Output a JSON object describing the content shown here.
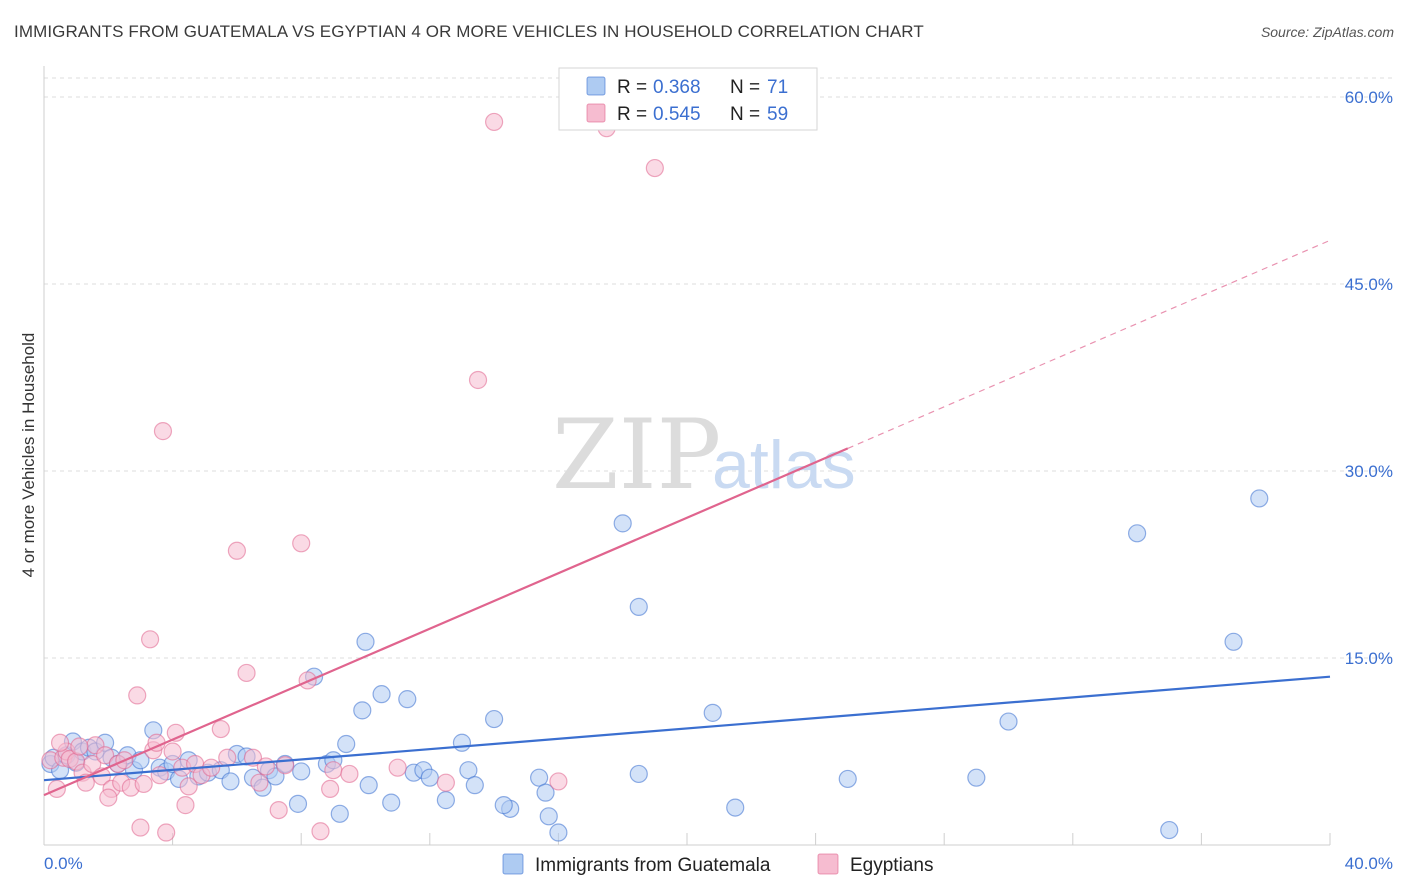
{
  "title": "IMMIGRANTS FROM GUATEMALA VS EGYPTIAN 4 OR MORE VEHICLES IN HOUSEHOLD CORRELATION CHART",
  "source": "Source: ZipAtlas.com",
  "watermark": {
    "zip": "ZIP",
    "atlas": "atlas"
  },
  "colors": {
    "blue": "#3b6fd0",
    "blue_fill": "#aecbf2",
    "pink": "#e0648e",
    "pink_fill": "#f6bcd0",
    "grid": "#dddddd"
  },
  "chart_data": {
    "type": "scatter",
    "ylabel": "4 or more Vehicles in Household",
    "xlim": [
      0,
      40
    ],
    "ylim": [
      0,
      60
    ],
    "x_tick_labels": [
      "0.0%",
      "40.0%"
    ],
    "y_ticks": [
      15,
      30,
      45,
      60
    ],
    "y_tick_labels": [
      "15.0%",
      "30.0%",
      "45.0%",
      "60.0%"
    ],
    "legend": [
      {
        "r_label": "R =",
        "r_value": "0.368",
        "n_label": "N =",
        "n_value": "71"
      },
      {
        "r_label": "R =",
        "r_value": "0.545",
        "n_label": "N =",
        "n_value": "59"
      }
    ],
    "series": [
      {
        "name": "Immigrants from Guatemala",
        "color": "#3b6fd0",
        "trend": {
          "x0": 0,
          "y0": 5.2,
          "x1": 40,
          "y1": 13.5,
          "solid_to": 40
        },
        "points": [
          [
            0.2,
            6.5
          ],
          [
            0.3,
            7.0
          ],
          [
            0.5,
            6.0
          ],
          [
            0.7,
            7.2
          ],
          [
            0.9,
            8.3
          ],
          [
            1.0,
            6.6
          ],
          [
            1.2,
            7.5
          ],
          [
            1.4,
            7.8
          ],
          [
            1.6,
            7.5
          ],
          [
            1.9,
            8.2
          ],
          [
            2.1,
            7.0
          ],
          [
            2.3,
            6.5
          ],
          [
            2.6,
            7.2
          ],
          [
            2.8,
            6.0
          ],
          [
            3.0,
            6.8
          ],
          [
            3.4,
            9.2
          ],
          [
            3.6,
            6.2
          ],
          [
            3.8,
            5.9
          ],
          [
            4.0,
            6.5
          ],
          [
            4.2,
            5.3
          ],
          [
            4.5,
            6.8
          ],
          [
            4.8,
            5.5
          ],
          [
            5.1,
            5.8
          ],
          [
            5.5,
            6.0
          ],
          [
            5.8,
            5.1
          ],
          [
            6.0,
            7.3
          ],
          [
            6.3,
            7.1
          ],
          [
            6.5,
            5.4
          ],
          [
            6.8,
            4.6
          ],
          [
            7.0,
            6.0
          ],
          [
            7.2,
            5.5
          ],
          [
            7.5,
            6.5
          ],
          [
            8.0,
            5.9
          ],
          [
            8.4,
            13.5
          ],
          [
            8.8,
            6.5
          ],
          [
            9.0,
            6.8
          ],
          [
            9.4,
            8.1
          ],
          [
            9.9,
            10.8
          ],
          [
            10.1,
            4.8
          ],
          [
            10.5,
            12.1
          ],
          [
            10.8,
            3.4
          ],
          [
            11.3,
            11.7
          ],
          [
            11.5,
            5.8
          ],
          [
            11.8,
            6.0
          ],
          [
            12.0,
            5.4
          ],
          [
            12.5,
            3.6
          ],
          [
            13.0,
            8.2
          ],
          [
            13.2,
            6.0
          ],
          [
            13.4,
            4.8
          ],
          [
            14.0,
            10.1
          ],
          [
            14.5,
            2.9
          ],
          [
            15.4,
            5.4
          ],
          [
            15.6,
            4.2
          ],
          [
            15.7,
            2.3
          ],
          [
            16.0,
            1.0
          ],
          [
            18.0,
            25.8
          ],
          [
            18.5,
            5.7
          ],
          [
            18.5,
            19.1
          ],
          [
            20.8,
            10.6
          ],
          [
            21.5,
            3.0
          ],
          [
            25.0,
            5.3
          ],
          [
            29.0,
            5.4
          ],
          [
            30.0,
            9.9
          ],
          [
            34.0,
            25.0
          ],
          [
            35.0,
            1.2
          ],
          [
            37.0,
            16.3
          ],
          [
            37.8,
            27.8
          ],
          [
            14.3,
            3.2
          ],
          [
            9.2,
            2.5
          ],
          [
            7.9,
            3.3
          ],
          [
            10.0,
            16.3
          ]
        ]
      },
      {
        "name": "Egyptians",
        "color": "#e0648e",
        "trend": {
          "x0": 0,
          "y0": 4.0,
          "x1": 40,
          "y1": 48.5,
          "solid_to": 25
        },
        "points": [
          [
            0.2,
            6.8
          ],
          [
            0.4,
            4.5
          ],
          [
            0.6,
            7.0
          ],
          [
            0.7,
            7.5
          ],
          [
            0.8,
            6.9
          ],
          [
            1.0,
            6.7
          ],
          [
            1.2,
            5.8
          ],
          [
            1.3,
            5.0
          ],
          [
            1.5,
            6.5
          ],
          [
            1.6,
            8.0
          ],
          [
            1.8,
            5.5
          ],
          [
            1.9,
            7.2
          ],
          [
            2.1,
            4.5
          ],
          [
            2.3,
            6.5
          ],
          [
            2.4,
            5.0
          ],
          [
            2.5,
            6.8
          ],
          [
            2.7,
            4.6
          ],
          [
            2.9,
            12.0
          ],
          [
            3.0,
            1.4
          ],
          [
            3.1,
            4.9
          ],
          [
            3.3,
            16.5
          ],
          [
            3.4,
            7.6
          ],
          [
            3.5,
            8.2
          ],
          [
            3.7,
            33.2
          ],
          [
            3.8,
            1.0
          ],
          [
            4.0,
            7.5
          ],
          [
            4.1,
            9.0
          ],
          [
            4.3,
            6.2
          ],
          [
            4.5,
            4.7
          ],
          [
            4.7,
            6.5
          ],
          [
            4.9,
            5.6
          ],
          [
            5.2,
            6.2
          ],
          [
            5.5,
            9.3
          ],
          [
            5.7,
            7.0
          ],
          [
            6.0,
            23.6
          ],
          [
            6.3,
            13.8
          ],
          [
            6.5,
            7.0
          ],
          [
            6.9,
            6.3
          ],
          [
            7.3,
            2.8
          ],
          [
            7.5,
            6.4
          ],
          [
            8.0,
            24.2
          ],
          [
            8.2,
            13.2
          ],
          [
            8.6,
            1.1
          ],
          [
            9.0,
            6.0
          ],
          [
            13.5,
            37.3
          ],
          [
            17.5,
            57.5
          ],
          [
            19.0,
            54.3
          ],
          [
            14.0,
            58.0
          ],
          [
            11.0,
            6.2
          ],
          [
            16.0,
            5.1
          ],
          [
            2.0,
            3.8
          ],
          [
            4.4,
            3.2
          ],
          [
            8.9,
            4.5
          ],
          [
            6.7,
            5.0
          ],
          [
            12.5,
            5.0
          ],
          [
            3.6,
            5.6
          ],
          [
            1.1,
            7.9
          ],
          [
            0.5,
            8.2
          ],
          [
            9.5,
            5.7
          ]
        ]
      }
    ]
  }
}
